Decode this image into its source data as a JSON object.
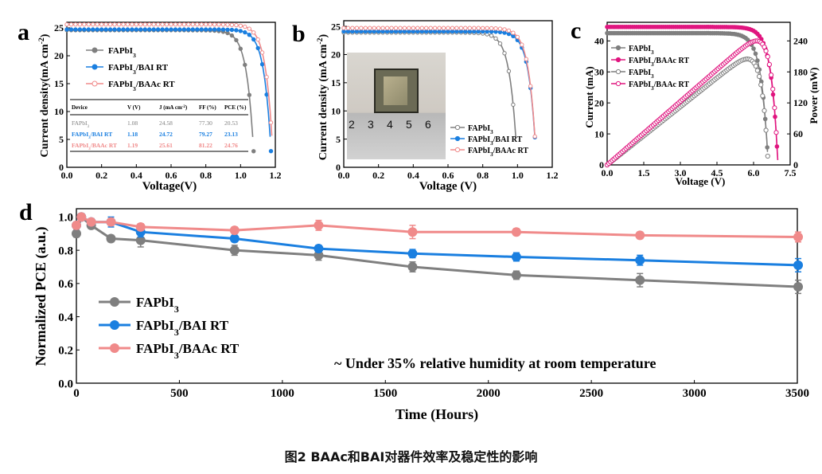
{
  "figure_caption": "图2 BAAc和BAI对器件效率及稳定性的影响",
  "panel_letters": {
    "a": "a",
    "b": "b",
    "c": "c",
    "d": "d"
  },
  "colors": {
    "gray": "#7f7f7f",
    "blue": "#1a7fe0",
    "pink": "#f08a8a",
    "magenta": "#e0157f"
  },
  "photo": {
    "ruler_labels": [
      "2",
      "3",
      "4",
      "5",
      "6"
    ]
  },
  "chart_data": [
    {
      "panel": "a",
      "type": "line",
      "xlabel": "Voltage(V)",
      "ylabel": "Current density(mA cm⁻²)",
      "xlim": [
        0,
        1.2
      ],
      "ylim": [
        0,
        26
      ],
      "xticks": [
        "0.0",
        "0.2",
        "0.4",
        "0.6",
        "0.8",
        "1.0",
        "1.2"
      ],
      "yticks": [
        "0",
        "5",
        "10",
        "15",
        "20",
        "25"
      ],
      "legend_position": "upper-middle",
      "series": [
        {
          "name": "FAPbI₃",
          "color": "gray",
          "jsc": 24.58,
          "voc": 1.08
        },
        {
          "name": "FAPbI₃/BAI RT",
          "color": "blue",
          "jsc": 24.72,
          "voc": 1.18
        },
        {
          "name": "FAPbI₃/BAAc RT",
          "color": "pink",
          "jsc": 25.61,
          "voc": 1.19
        }
      ],
      "table": {
        "headers": [
          "Device",
          "Voc (V)",
          "Jsc (mA cm⁻²)",
          "FF (%)",
          "PCE (%)"
        ],
        "rows": [
          {
            "color": "gray",
            "cells": [
              "FAPbI₃",
              "1.08",
              "24.58",
              "77.30",
              "20.53"
            ]
          },
          {
            "color": "blue",
            "cells": [
              "FAPbI₃/BAI RT",
              "1.18",
              "24.72",
              "79.27",
              "23.13"
            ]
          },
          {
            "color": "pink",
            "cells": [
              "FAPbI₃/BAAc RT",
              "1.19",
              "25.61",
              "81.22",
              "24.76"
            ]
          }
        ]
      }
    },
    {
      "panel": "b",
      "type": "line",
      "xlabel": "Voltage (V)",
      "ylabel": "Current density (mA cm⁻²)",
      "xlim": [
        0,
        1.2
      ],
      "ylim": [
        0,
        26
      ],
      "xticks": [
        "0.0",
        "0.2",
        "0.4",
        "0.6",
        "0.8",
        "1.0",
        "1.2"
      ],
      "yticks": [
        "0",
        "5",
        "10",
        "15",
        "20",
        "25"
      ],
      "legend_position": "lower-right",
      "series": [
        {
          "name": "FAPbI₃",
          "color": "gray",
          "jsc": 23.9,
          "voc": 1.0
        },
        {
          "name": "FAPbI₃/BAI RT",
          "color": "blue",
          "jsc": 24.1,
          "voc": 1.11
        },
        {
          "name": "FAPbI₃/BAAc RT",
          "color": "pink",
          "jsc": 24.7,
          "voc": 1.11
        }
      ]
    },
    {
      "panel": "c",
      "type": "line",
      "xlabel": "Voltage  (V)",
      "ylabel": "Current (mA)",
      "y2label": "Power (mW)",
      "xlim": [
        0,
        7.5
      ],
      "ylim": [
        0,
        46
      ],
      "y2lim": [
        0,
        276
      ],
      "xticks": [
        "0.0",
        "1.5",
        "3.0",
        "4.5",
        "6.0",
        "7.5"
      ],
      "yticks": [
        "0",
        "10",
        "20",
        "30",
        "40"
      ],
      "y2ticks": [
        "0",
        "60",
        "120",
        "180",
        "240"
      ],
      "legend_position": "upper-left",
      "series": [
        {
          "name": "FAPbI₃",
          "color": "gray",
          "kind": "current",
          "isc": 42.5,
          "voc": 6.6
        },
        {
          "name": "FAPbI₃/BAAc RT",
          "color": "magenta",
          "kind": "current",
          "isc": 44.5,
          "voc": 7.0
        },
        {
          "name": "FAPbI₃",
          "color": "gray",
          "kind": "power",
          "pmax": 205,
          "vmp": 5.6
        },
        {
          "name": "FAPbI₃/BAAc RT",
          "color": "magenta",
          "kind": "power",
          "pmax": 240,
          "vmp": 6.0
        }
      ]
    },
    {
      "panel": "d",
      "type": "line",
      "xlabel": "Time (Hours)",
      "ylabel": "Normalized PCE (a.u.)",
      "xlim": [
        0,
        3500
      ],
      "ylim": [
        0,
        1.05
      ],
      "xticks": [
        0,
        500,
        1000,
        1500,
        2000,
        2500,
        3000,
        3500
      ],
      "yticks": [
        "0.0",
        "0.2",
        "0.4",
        "0.6",
        "0.8",
        "1.0"
      ],
      "annotation": "~ Under 35% relative humidity at room temperature",
      "legend_position": "middle-left",
      "series": [
        {
          "name": "FAPbI₃",
          "color": "gray",
          "x": [
            0,
            24,
            72,
            168,
            312,
            768,
            1176,
            1632,
            2136,
            2736,
            3504
          ],
          "y": [
            0.9,
            1.0,
            0.95,
            0.87,
            0.86,
            0.8,
            0.77,
            0.7,
            0.65,
            0.62,
            0.58
          ],
          "err": [
            0.02,
            0.02,
            0.02,
            0.02,
            0.04,
            0.03,
            0.03,
            0.03,
            0.025,
            0.04,
            0.04
          ]
        },
        {
          "name": "FAPbI₃/BAI RT",
          "color": "blue",
          "x": [
            0,
            24,
            72,
            168,
            312,
            768,
            1176,
            1632,
            2136,
            2736,
            3504
          ],
          "y": [
            0.95,
            1.0,
            0.97,
            0.97,
            0.91,
            0.87,
            0.81,
            0.78,
            0.76,
            0.74,
            0.71
          ],
          "err": [
            0.02,
            0.02,
            0.02,
            0.03,
            0.03,
            0.02,
            0.02,
            0.025,
            0.025,
            0.03,
            0.04
          ]
        },
        {
          "name": "FAPbI₃/BAAc RT",
          "color": "pink",
          "x": [
            0,
            24,
            72,
            168,
            312,
            768,
            1176,
            1632,
            2136,
            2736,
            3504
          ],
          "y": [
            0.95,
            1.0,
            0.97,
            0.97,
            0.94,
            0.92,
            0.95,
            0.91,
            0.91,
            0.89,
            0.88
          ],
          "err": [
            0.02,
            0.02,
            0.02,
            0.02,
            0.02,
            0.02,
            0.03,
            0.04,
            0.02,
            0.02,
            0.03
          ]
        }
      ]
    }
  ]
}
